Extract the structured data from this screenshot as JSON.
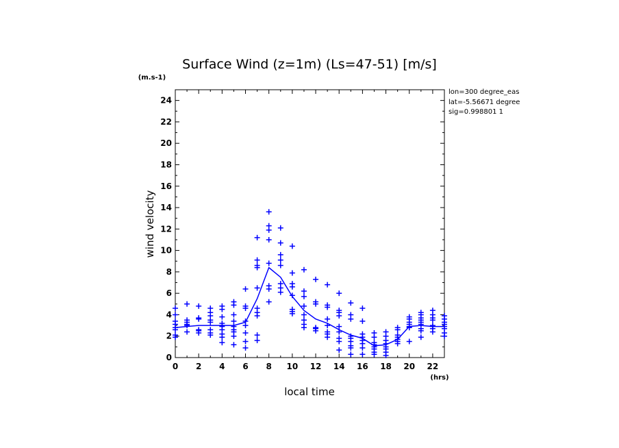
{
  "chart_data": {
    "type": "scatter",
    "title": "Surface Wind (z=1m) (Ls=47-51) [m/s]",
    "y_unit": "(m.s-1)",
    "x_unit": "(hrs)",
    "xlabel": "local time",
    "ylabel": "wind velocity",
    "info_lines": [
      "lon=300 degree_eas",
      "lat=-5.56671 degree",
      "sig=0.998801 1"
    ],
    "xlim": [
      0,
      23
    ],
    "ylim": [
      0,
      25
    ],
    "x_ticks": [
      0,
      2,
      4,
      6,
      8,
      10,
      12,
      14,
      16,
      18,
      20,
      22
    ],
    "y_ticks": [
      0,
      2,
      4,
      6,
      8,
      10,
      12,
      14,
      16,
      18,
      20,
      22,
      24
    ],
    "grid": false,
    "colors": {
      "series": "#0000ff",
      "axes": "#000000"
    },
    "series": [
      {
        "kind": "line",
        "x": [
          0,
          1,
          2,
          3,
          4,
          5,
          6,
          7,
          8,
          9,
          10,
          11,
          12,
          13,
          14,
          15,
          16,
          17,
          18,
          19,
          20,
          21,
          22,
          23
        ],
        "y": [
          2.8,
          2.9,
          3.0,
          3.0,
          3.0,
          3.0,
          3.3,
          5.5,
          8.4,
          7.5,
          5.7,
          4.4,
          3.6,
          3.2,
          2.6,
          2.1,
          1.8,
          1.1,
          1.2,
          1.7,
          2.9,
          3.0,
          2.9,
          2.9
        ]
      },
      {
        "kind": "points",
        "marker": "+",
        "points": [
          [
            0,
            4.6
          ],
          [
            0,
            4.0
          ],
          [
            0,
            3.4
          ],
          [
            0,
            3.1
          ],
          [
            0,
            2.8
          ],
          [
            0,
            2.6
          ],
          [
            0,
            2.1
          ],
          [
            0,
            1.9
          ],
          [
            1,
            5.0
          ],
          [
            1,
            3.5
          ],
          [
            1,
            3.3
          ],
          [
            1,
            3.1
          ],
          [
            1,
            3.0
          ],
          [
            1,
            2.4
          ],
          [
            2,
            4.8
          ],
          [
            2,
            3.7
          ],
          [
            2,
            3.6
          ],
          [
            2,
            2.6
          ],
          [
            2,
            2.5
          ],
          [
            2,
            2.3
          ],
          [
            3,
            4.6
          ],
          [
            3,
            4.2
          ],
          [
            3,
            3.9
          ],
          [
            3,
            3.5
          ],
          [
            3,
            3.3
          ],
          [
            3,
            2.6
          ],
          [
            3,
            2.3
          ],
          [
            3,
            2.1
          ],
          [
            4,
            4.8
          ],
          [
            4,
            4.5
          ],
          [
            4,
            3.8
          ],
          [
            4,
            3.2
          ],
          [
            4,
            3.0
          ],
          [
            4,
            2.9
          ],
          [
            4,
            2.6
          ],
          [
            4,
            2.2
          ],
          [
            4,
            1.9
          ],
          [
            4,
            1.4
          ],
          [
            5,
            5.2
          ],
          [
            5,
            4.9
          ],
          [
            5,
            4.0
          ],
          [
            5,
            3.4
          ],
          [
            5,
            2.9
          ],
          [
            5,
            2.6
          ],
          [
            5,
            2.4
          ],
          [
            5,
            2.0
          ],
          [
            5,
            1.2
          ],
          [
            6,
            6.4
          ],
          [
            6,
            4.8
          ],
          [
            6,
            4.6
          ],
          [
            6,
            3.4
          ],
          [
            6,
            3.0
          ],
          [
            6,
            2.3
          ],
          [
            6,
            1.5
          ],
          [
            6,
            0.9
          ],
          [
            7,
            11.2
          ],
          [
            7,
            9.1
          ],
          [
            7,
            8.6
          ],
          [
            7,
            8.4
          ],
          [
            7,
            6.5
          ],
          [
            7,
            4.6
          ],
          [
            7,
            4.2
          ],
          [
            7,
            3.9
          ],
          [
            7,
            2.1
          ],
          [
            7,
            1.6
          ],
          [
            8,
            13.6
          ],
          [
            8,
            12.3
          ],
          [
            8,
            11.9
          ],
          [
            8,
            11.0
          ],
          [
            8,
            8.8
          ],
          [
            8,
            6.7
          ],
          [
            8,
            6.4
          ],
          [
            8,
            5.2
          ],
          [
            9,
            12.1
          ],
          [
            9,
            10.7
          ],
          [
            9,
            9.6
          ],
          [
            9,
            9.1
          ],
          [
            9,
            8.6
          ],
          [
            9,
            6.9
          ],
          [
            9,
            6.5
          ],
          [
            9,
            6.1
          ],
          [
            10,
            10.4
          ],
          [
            10,
            7.9
          ],
          [
            10,
            6.9
          ],
          [
            10,
            6.6
          ],
          [
            10,
            5.8
          ],
          [
            10,
            4.5
          ],
          [
            10,
            4.3
          ],
          [
            10,
            4.1
          ],
          [
            11,
            8.2
          ],
          [
            11,
            6.2
          ],
          [
            11,
            5.7
          ],
          [
            11,
            4.8
          ],
          [
            11,
            4.0
          ],
          [
            11,
            3.5
          ],
          [
            11,
            3.1
          ],
          [
            11,
            2.8
          ],
          [
            12,
            7.3
          ],
          [
            12,
            5.2
          ],
          [
            12,
            5.0
          ],
          [
            12,
            2.8
          ],
          [
            12,
            2.7
          ],
          [
            12,
            2.5
          ],
          [
            13,
            6.8
          ],
          [
            13,
            4.9
          ],
          [
            13,
            4.7
          ],
          [
            13,
            3.6
          ],
          [
            13,
            3.0
          ],
          [
            13,
            2.4
          ],
          [
            13,
            2.2
          ],
          [
            13,
            1.9
          ],
          [
            14,
            6.0
          ],
          [
            14,
            4.4
          ],
          [
            14,
            4.2
          ],
          [
            14,
            3.9
          ],
          [
            14,
            2.9
          ],
          [
            14,
            2.4
          ],
          [
            14,
            1.8
          ],
          [
            14,
            1.5
          ],
          [
            14,
            0.7
          ],
          [
            15,
            5.1
          ],
          [
            15,
            4.0
          ],
          [
            15,
            3.6
          ],
          [
            15,
            2.0
          ],
          [
            15,
            1.8
          ],
          [
            15,
            1.5
          ],
          [
            15,
            1.1
          ],
          [
            15,
            0.9
          ],
          [
            15,
            0.3
          ],
          [
            16,
            4.6
          ],
          [
            16,
            3.4
          ],
          [
            16,
            2.2
          ],
          [
            16,
            1.9
          ],
          [
            16,
            1.6
          ],
          [
            16,
            1.3
          ],
          [
            16,
            0.9
          ],
          [
            16,
            0.3
          ],
          [
            17,
            2.3
          ],
          [
            17,
            1.9
          ],
          [
            17,
            1.4
          ],
          [
            17,
            1.2
          ],
          [
            17,
            1.0
          ],
          [
            17,
            0.8
          ],
          [
            17,
            0.5
          ],
          [
            17,
            0.3
          ],
          [
            18,
            2.4
          ],
          [
            18,
            2.0
          ],
          [
            18,
            1.6
          ],
          [
            18,
            1.3
          ],
          [
            18,
            1.0
          ],
          [
            18,
            0.8
          ],
          [
            18,
            0.5
          ],
          [
            18,
            0.2
          ],
          [
            19,
            2.8
          ],
          [
            19,
            2.6
          ],
          [
            19,
            2.1
          ],
          [
            19,
            1.9
          ],
          [
            19,
            1.7
          ],
          [
            19,
            1.5
          ],
          [
            19,
            1.3
          ],
          [
            20,
            3.8
          ],
          [
            20,
            3.6
          ],
          [
            20,
            3.3
          ],
          [
            20,
            3.1
          ],
          [
            20,
            2.9
          ],
          [
            20,
            2.8
          ],
          [
            20,
            1.5
          ],
          [
            21,
            4.2
          ],
          [
            21,
            4.0
          ],
          [
            21,
            3.7
          ],
          [
            21,
            3.5
          ],
          [
            21,
            3.3
          ],
          [
            21,
            3.1
          ],
          [
            21,
            2.7
          ],
          [
            21,
            2.5
          ],
          [
            21,
            1.9
          ],
          [
            22,
            4.4
          ],
          [
            22,
            4.0
          ],
          [
            22,
            3.7
          ],
          [
            22,
            3.5
          ],
          [
            22,
            3.0
          ],
          [
            22,
            2.9
          ],
          [
            22,
            2.7
          ],
          [
            22,
            2.4
          ],
          [
            23,
            3.9
          ],
          [
            23,
            3.6
          ],
          [
            23,
            3.3
          ],
          [
            23,
            3.1
          ],
          [
            23,
            2.9
          ],
          [
            23,
            2.7
          ],
          [
            23,
            2.3
          ],
          [
            23,
            2.0
          ]
        ]
      }
    ]
  }
}
